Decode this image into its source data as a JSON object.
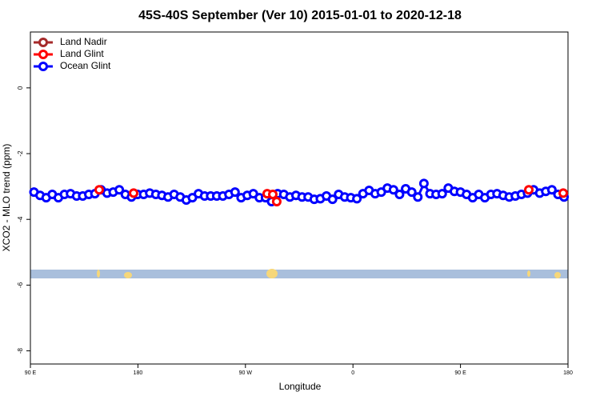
{
  "chart_data": {
    "type": "scatter",
    "title": "45S-40S September (Ver 10)   2015-01-01 to 2020-12-18",
    "x_label": "Longitude",
    "y_label": "XCO2 - MLO trend (ppm)",
    "xlim": [
      90,
      540
    ],
    "xticks": [
      {
        "value": 90,
        "label": "90 E"
      },
      {
        "value": 180,
        "label": "180"
      },
      {
        "value": 270,
        "label": "90 W"
      },
      {
        "value": 360,
        "label": "0"
      },
      {
        "value": 450,
        "label": "90 E"
      },
      {
        "value": 540,
        "label": "180"
      }
    ],
    "ylim": [
      -8.4,
      1.7
    ],
    "yticks": [
      0,
      -2,
      -4,
      -6,
      -8
    ],
    "legend": "top-left",
    "series": [
      {
        "name": "Land Nadir",
        "color": "#a52a2a",
        "x": [],
        "values": []
      },
      {
        "name": "Land Glint",
        "color": "#ff0000",
        "x": [
          147.6,
          176.4,
          288.2,
          292.9,
          296.2,
          507.2,
          536
        ],
        "values": [
          -3.1,
          -3.2,
          -3.22,
          -3.24,
          -3.46,
          -3.1,
          -3.2
        ]
      },
      {
        "name": "Ocean Glint",
        "color": "#0000ff",
        "x": [
          93,
          98.1,
          103.2,
          108.3,
          113.4,
          118.5,
          123.6,
          128.7,
          133.8,
          138.9,
          144,
          149.1,
          154.2,
          159.3,
          164.4,
          169.5,
          174.6,
          179.7,
          184.8,
          189.9,
          195,
          200.1,
          205.2,
          210.3,
          215.4,
          220.5,
          225.6,
          230.7,
          235.8,
          240.9,
          246,
          251.1,
          256.2,
          261.3,
          266.4,
          271.5,
          276.6,
          281.7,
          286.8,
          291.9,
          297,
          302.1,
          307.2,
          312.3,
          317.4,
          322.5,
          327.6,
          332.7,
          337.8,
          342.9,
          348,
          353.1,
          358.2,
          363.3,
          368.4,
          373.5,
          378.6,
          383.7,
          388.8,
          393.9,
          399,
          404.1,
          409.2,
          414.3,
          419.4,
          424.5,
          429.6,
          434.7,
          439.8,
          444.9,
          450,
          455.1,
          460.2,
          465.3,
          470.4,
          475.5,
          480.6,
          485.7,
          490.8,
          495.9,
          501,
          506.1,
          511.2,
          516.3,
          521.4,
          526.5,
          531.6,
          536.7
        ],
        "values": [
          -3.17,
          -3.27,
          -3.34,
          -3.24,
          -3.34,
          -3.24,
          -3.22,
          -3.29,
          -3.29,
          -3.24,
          -3.22,
          -3.1,
          -3.2,
          -3.17,
          -3.1,
          -3.24,
          -3.32,
          -3.24,
          -3.24,
          -3.2,
          -3.24,
          -3.27,
          -3.32,
          -3.24,
          -3.32,
          -3.41,
          -3.34,
          -3.22,
          -3.29,
          -3.29,
          -3.29,
          -3.29,
          -3.24,
          -3.17,
          -3.34,
          -3.27,
          -3.22,
          -3.34,
          -3.34,
          -3.46,
          -3.22,
          -3.24,
          -3.32,
          -3.27,
          -3.32,
          -3.32,
          -3.39,
          -3.37,
          -3.29,
          -3.39,
          -3.24,
          -3.32,
          -3.34,
          -3.37,
          -3.22,
          -3.12,
          -3.22,
          -3.17,
          -3.05,
          -3.1,
          -3.24,
          -3.07,
          -3.17,
          -3.32,
          -2.91,
          -3.22,
          -3.24,
          -3.22,
          -3.05,
          -3.15,
          -3.17,
          -3.24,
          -3.34,
          -3.24,
          -3.34,
          -3.24,
          -3.22,
          -3.27,
          -3.32,
          -3.29,
          -3.24,
          -3.2,
          -3.1,
          -3.2,
          -3.15,
          -3.1,
          -3.24,
          -3.32
        ]
      }
    ]
  }
}
